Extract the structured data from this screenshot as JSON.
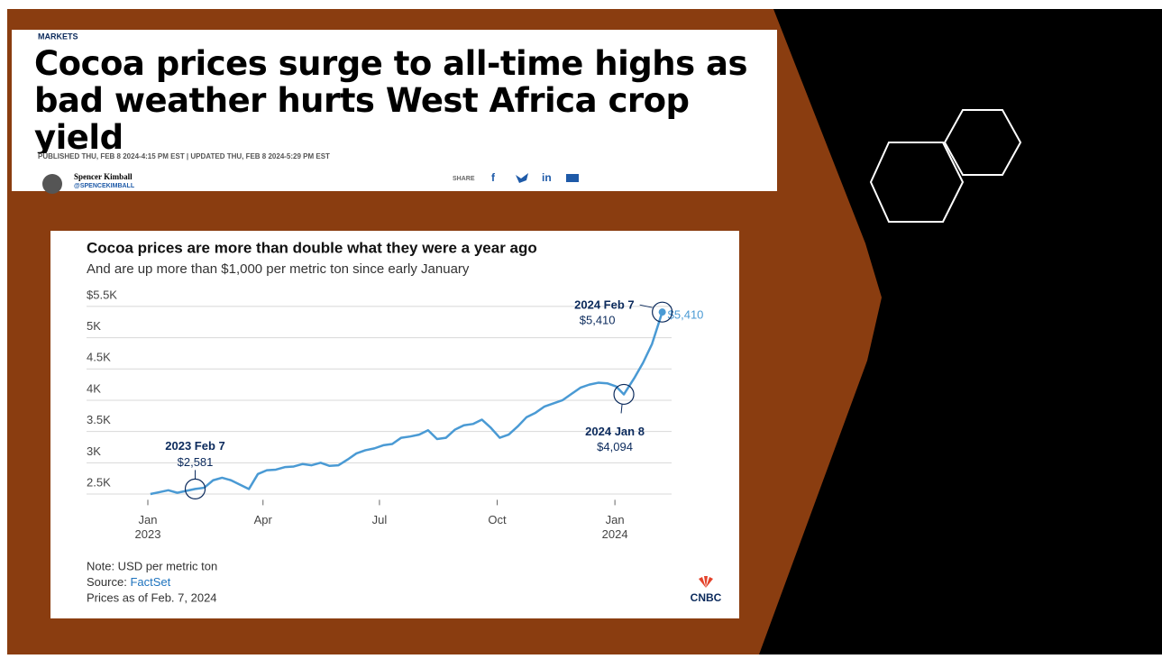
{
  "article": {
    "section": "MARKETS",
    "headline": "Cocoa prices surge to all-time highs as bad weather hurts West Africa crop yield",
    "dateline": "PUBLISHED THU, FEB 8 2024-4:15 PM EST | UPDATED THU, FEB 8 2024-5:29 PM EST",
    "author": "Spencer Kimball",
    "handle": "@SPENCEKIMBALL",
    "share": "SHARE",
    "share_icons": [
      "f",
      "in"
    ]
  },
  "chart_data": {
    "type": "line",
    "title": "Cocoa prices are more than double what they were a year ago",
    "subtitle": "And are up more than $1,000 per metric ton since early January",
    "x": [
      "2023-01-03",
      "2023-01-10",
      "2023-01-17",
      "2023-01-24",
      "2023-01-31",
      "2023-02-07",
      "2023-02-14",
      "2023-02-21",
      "2023-02-28",
      "2023-03-07",
      "2023-03-14",
      "2023-03-21",
      "2023-03-28",
      "2023-04-04",
      "2023-04-11",
      "2023-04-18",
      "2023-04-25",
      "2023-05-02",
      "2023-05-09",
      "2023-05-16",
      "2023-05-23",
      "2023-05-30",
      "2023-06-06",
      "2023-06-13",
      "2023-06-20",
      "2023-06-27",
      "2023-07-04",
      "2023-07-11",
      "2023-07-18",
      "2023-07-25",
      "2023-08-01",
      "2023-08-08",
      "2023-08-15",
      "2023-08-22",
      "2023-08-29",
      "2023-09-05",
      "2023-09-12",
      "2023-09-19",
      "2023-09-26",
      "2023-10-03",
      "2023-10-10",
      "2023-10-17",
      "2023-10-24",
      "2023-10-31",
      "2023-11-07",
      "2023-11-14",
      "2023-11-21",
      "2023-11-28",
      "2023-12-05",
      "2023-12-12",
      "2023-12-19",
      "2023-12-26",
      "2024-01-02",
      "2024-01-08",
      "2024-01-16",
      "2024-01-23",
      "2024-01-30",
      "2024-02-07"
    ],
    "series": [
      {
        "name": "Cocoa price",
        "color": "#4a9ad4",
        "values": [
          2500,
          2530,
          2560,
          2520,
          2550,
          2581,
          2600,
          2720,
          2760,
          2720,
          2650,
          2580,
          2820,
          2880,
          2890,
          2930,
          2940,
          2980,
          2960,
          3000,
          2950,
          2960,
          3050,
          3150,
          3200,
          3230,
          3280,
          3300,
          3400,
          3420,
          3450,
          3520,
          3380,
          3400,
          3530,
          3600,
          3620,
          3690,
          3560,
          3400,
          3450,
          3580,
          3730,
          3800,
          3900,
          3950,
          4000,
          4100,
          4200,
          4250,
          4280,
          4270,
          4220,
          4094,
          4350,
          4600,
          4900,
          5410
        ]
      }
    ],
    "end_label": "$5,410",
    "xlim": [
      "2023-01-01",
      "2024-02-15"
    ],
    "xticks": [
      {
        "value": "2023-01-01",
        "label": "Jan"
      },
      {
        "value": "2023-04-01",
        "label": "Apr"
      },
      {
        "value": "2023-07-01",
        "label": "Jul"
      },
      {
        "value": "2023-10-01",
        "label": "Oct"
      },
      {
        "value": "2024-01-01",
        "label": "Jan"
      }
    ],
    "xtick_years": [
      {
        "value": "2023-01-01",
        "label": "2023"
      },
      {
        "value": "2024-01-01",
        "label": "2024"
      }
    ],
    "ylim": [
      2350,
      5600
    ],
    "yticks": [
      {
        "value": 2500,
        "label": "2.5K"
      },
      {
        "value": 3000,
        "label": "3K"
      },
      {
        "value": 3500,
        "label": "3.5K"
      },
      {
        "value": 4000,
        "label": "4K"
      },
      {
        "value": 4500,
        "label": "4.5K"
      },
      {
        "value": 5000,
        "label": "5K"
      },
      {
        "value": 5500,
        "label": "$5.5K"
      }
    ],
    "grid": true,
    "annotations": [
      {
        "x": "2023-02-07",
        "date": "2023 Feb 7",
        "value": 2581,
        "value_label": "$2,581"
      },
      {
        "x": "2024-01-08",
        "date": "2024 Jan 8",
        "value": 4094,
        "value_label": "$4,094"
      },
      {
        "x": "2024-02-07",
        "date": "2024 Feb 7",
        "value": 5410,
        "value_label": "$5,410"
      }
    ],
    "note": "Note: USD per metric ton",
    "source_label": "Source:",
    "source": "FactSet",
    "as_of": "Prices as of Feb. 7, 2024",
    "logo": "CNBC"
  }
}
